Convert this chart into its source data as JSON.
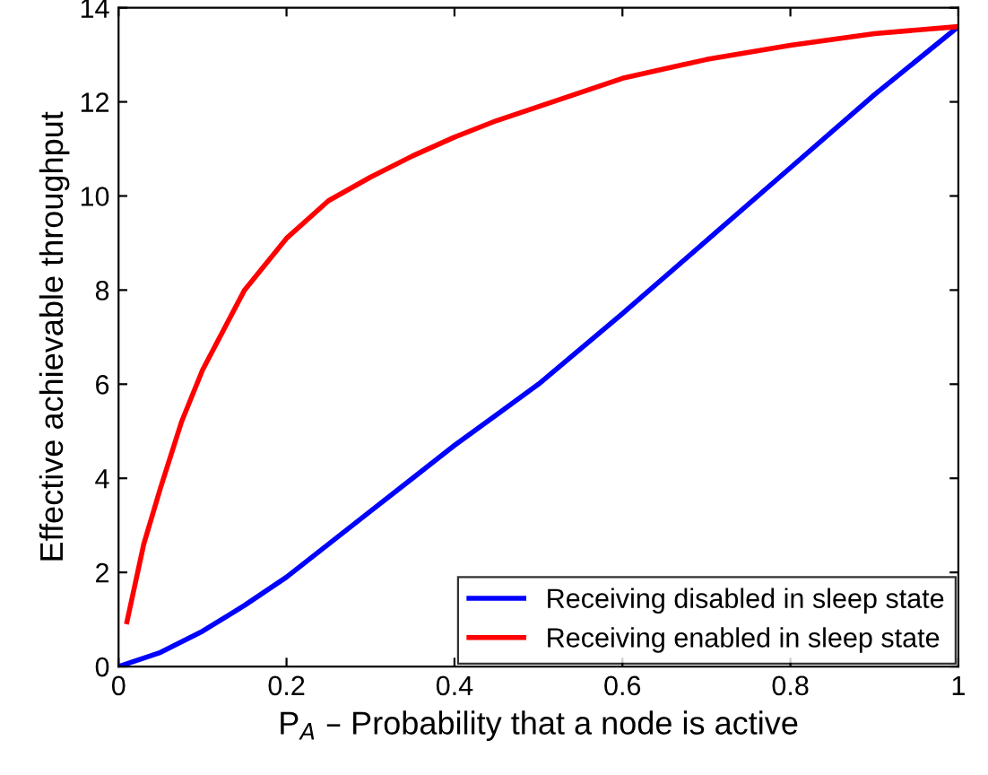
{
  "chart_data": {
    "type": "line",
    "xlabel": "P$_{A}$ – Probability that a node is active",
    "ylabel": "Effective achievable throughput",
    "xlim": [
      0,
      1
    ],
    "ylim": [
      0,
      14
    ],
    "xticks": [
      0,
      0.2,
      0.4,
      0.6,
      0.8,
      1
    ],
    "yticks": [
      0,
      2,
      4,
      6,
      8,
      10,
      12,
      14
    ],
    "series": [
      {
        "name": "Receiving disabled in sleep state",
        "color": "#0000ff",
        "x": [
          0,
          0.05,
          0.1,
          0.15,
          0.2,
          0.25,
          0.3,
          0.35,
          0.4,
          0.45,
          0.5,
          0.6,
          0.7,
          0.8,
          0.9,
          1
        ],
        "values": [
          0,
          0.3,
          0.75,
          1.3,
          1.9,
          2.6,
          3.3,
          4.0,
          4.7,
          5.35,
          6.0,
          7.5,
          9.05,
          10.6,
          12.15,
          13.6
        ]
      },
      {
        "name": "Receiving enabled in sleep state",
        "color": "#ff0000",
        "x": [
          0.01,
          0.03,
          0.05,
          0.075,
          0.1,
          0.15,
          0.2,
          0.25,
          0.3,
          0.35,
          0.4,
          0.45,
          0.5,
          0.6,
          0.7,
          0.8,
          0.9,
          1
        ],
        "values": [
          0.95,
          2.6,
          3.8,
          5.2,
          6.3,
          8.0,
          9.1,
          9.9,
          10.4,
          10.85,
          11.25,
          11.6,
          11.9,
          12.5,
          12.9,
          13.2,
          13.45,
          13.6
        ]
      }
    ],
    "grid": false,
    "legend": "bottom right",
    "line_style": "solid",
    "marker": "none"
  }
}
